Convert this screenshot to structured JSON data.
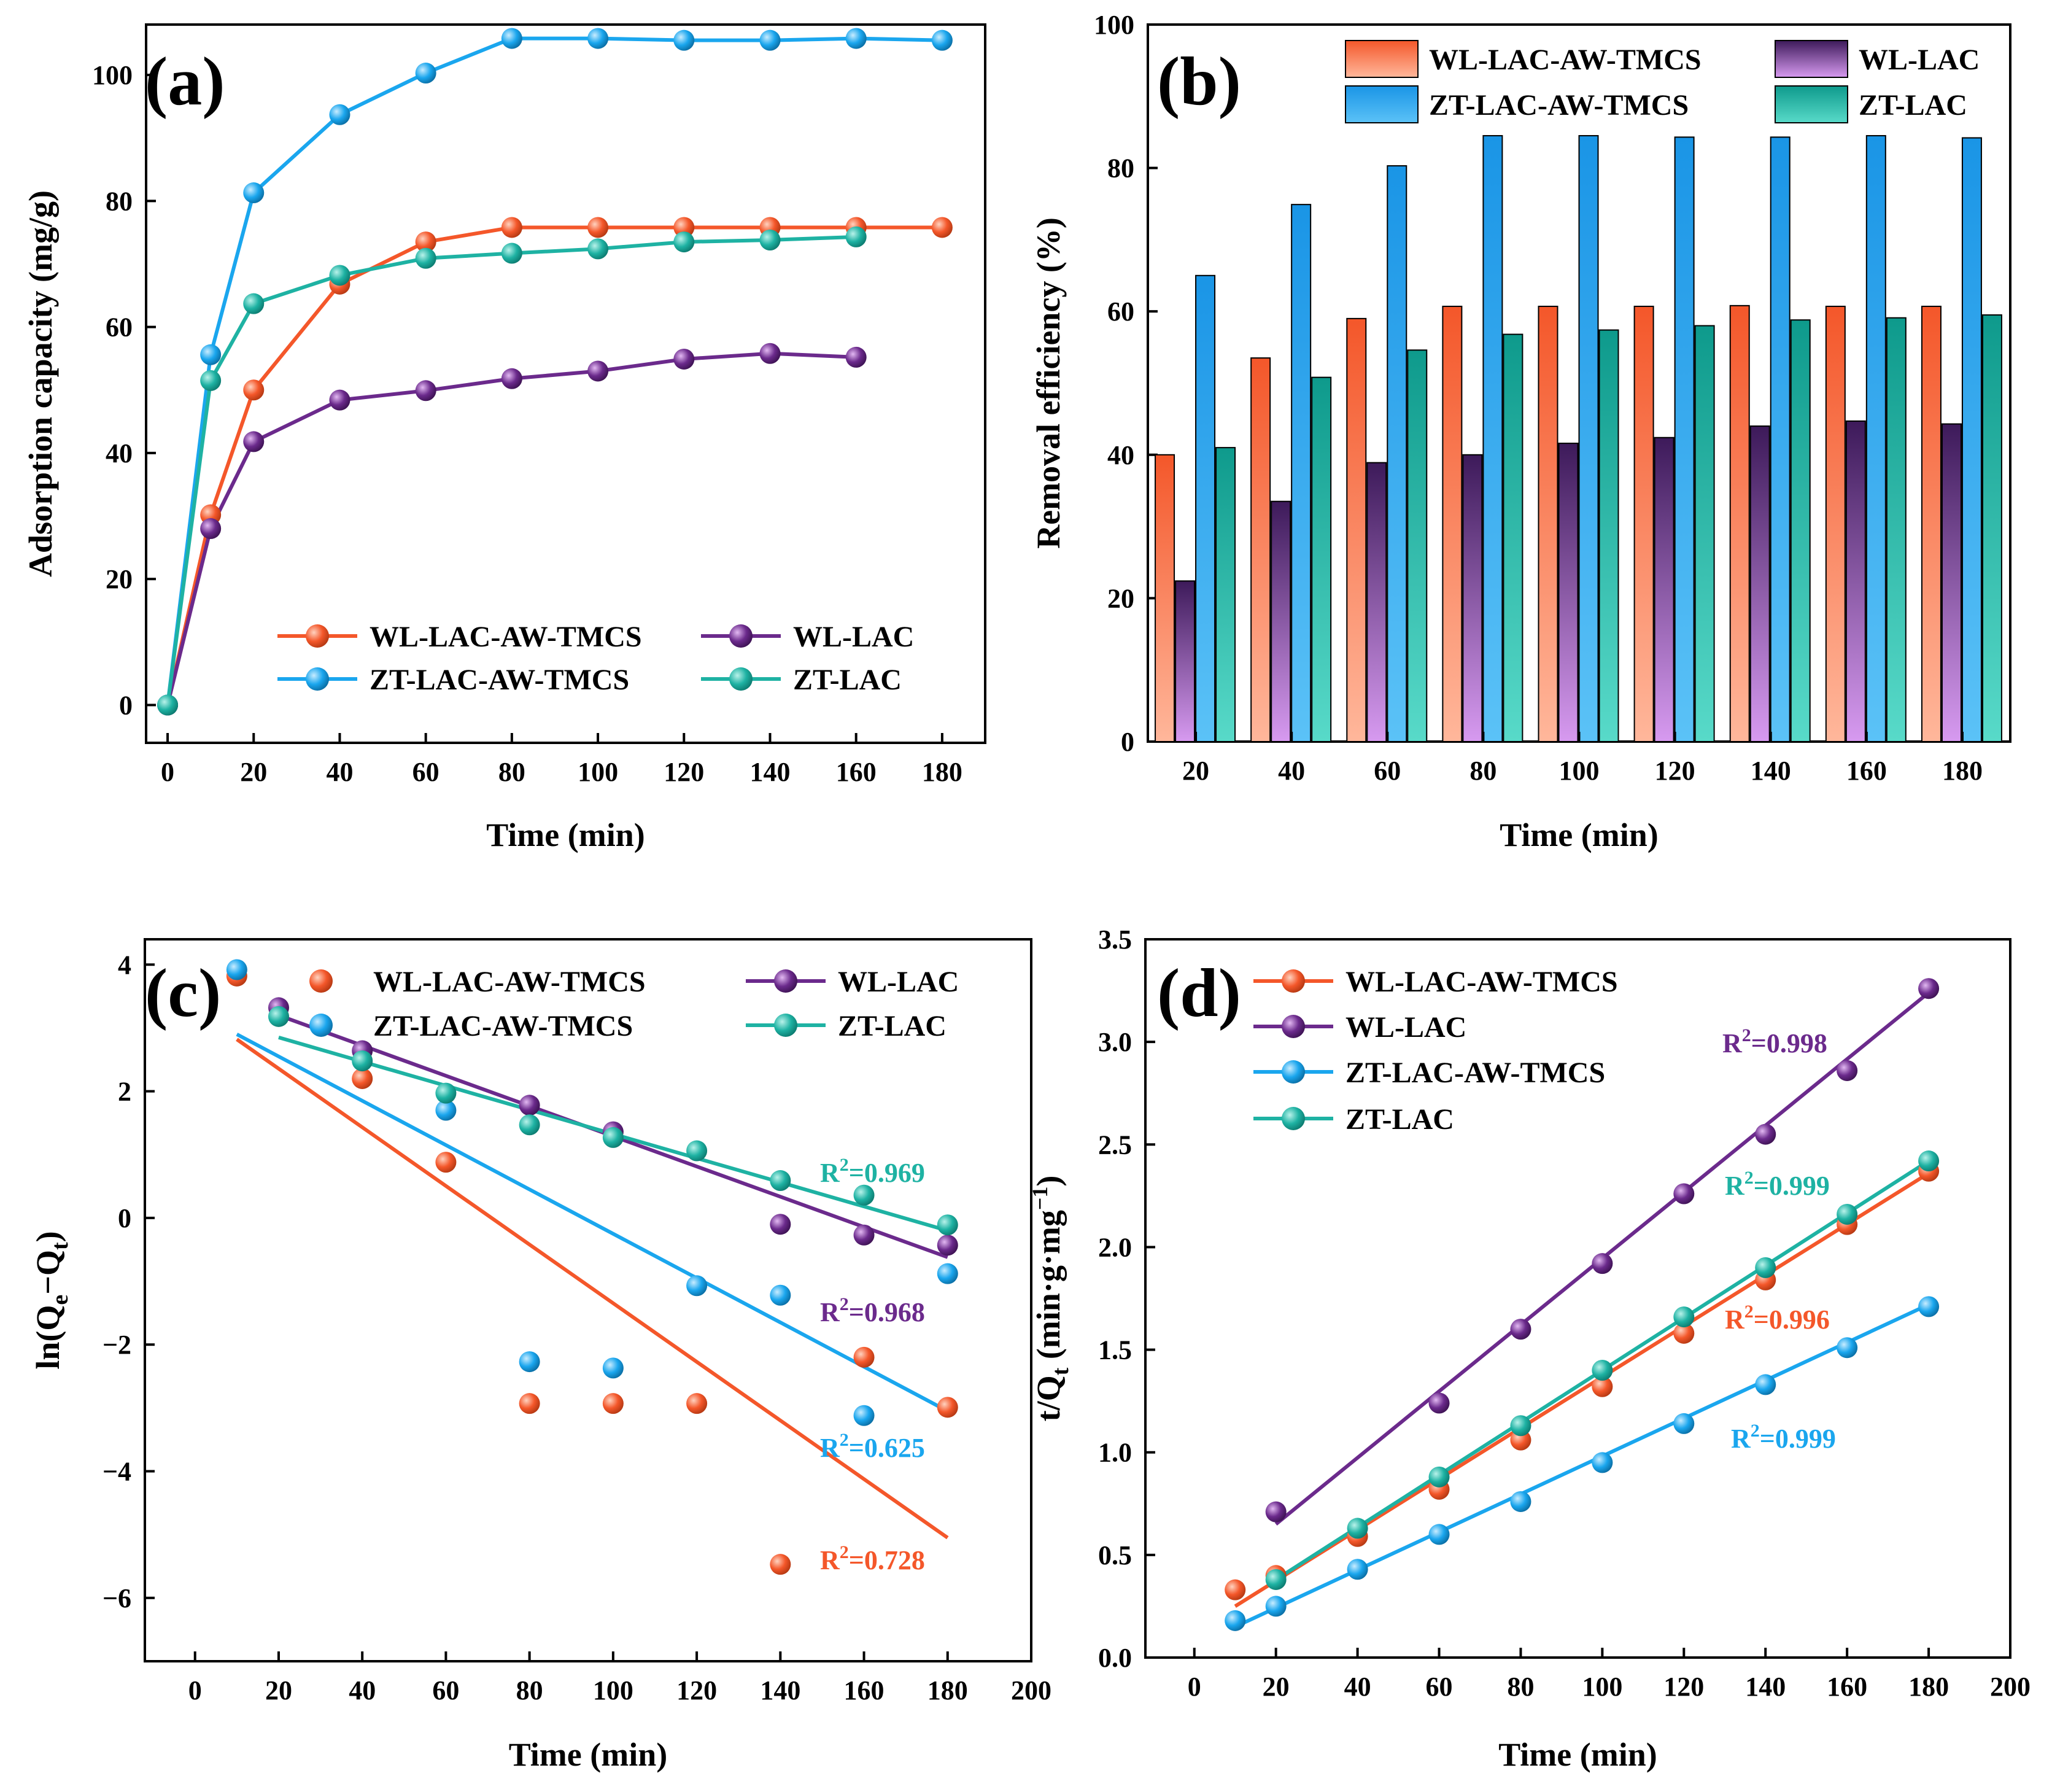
{
  "colors": {
    "WL-LAC-AW-TMCS": "#f4572a",
    "WL-LAC": "#6b2a8c",
    "ZT-LAC-AW-TMCS": "#1aa6ee",
    "ZT-LAC": "#1eb2a3"
  },
  "chart_data": [
    {
      "id": "a",
      "panel_label": "(a)",
      "type": "line",
      "xlabel": "Time (min)",
      "ylabel": "Adsorption capacity (mg/g)",
      "xlim": [
        -5,
        190
      ],
      "ylim": [
        -6,
        108
      ],
      "xticks": [
        0,
        20,
        40,
        60,
        80,
        100,
        120,
        140,
        160,
        180
      ],
      "yticks": [
        0,
        20,
        40,
        60,
        80,
        100
      ],
      "legend_position": "bottom-right",
      "series": [
        {
          "name": "WL-LAC-AW-TMCS",
          "x": [
            0,
            10,
            20,
            40,
            60,
            80,
            100,
            120,
            140,
            160,
            180
          ],
          "y": [
            0,
            30.2,
            50,
            66.8,
            73.5,
            75.8,
            75.8,
            75.8,
            75.8,
            75.8,
            75.8
          ]
        },
        {
          "name": "WL-LAC",
          "x": [
            0,
            10,
            20,
            40,
            60,
            80,
            100,
            120,
            140,
            160
          ],
          "y": [
            0,
            28,
            41.8,
            48.4,
            49.9,
            51.8,
            53,
            54.9,
            55.8,
            55.2
          ]
        },
        {
          "name": "ZT-LAC-AW-TMCS",
          "x": [
            0,
            10,
            20,
            40,
            60,
            80,
            100,
            120,
            140,
            160,
            180
          ],
          "y": [
            0,
            55.6,
            81.3,
            93.7,
            100.3,
            105.8,
            105.8,
            105.5,
            105.5,
            105.8,
            105.5
          ]
        },
        {
          "name": "ZT-LAC",
          "x": [
            0,
            10,
            20,
            40,
            60,
            80,
            100,
            120,
            140,
            160
          ],
          "y": [
            0,
            51.5,
            63.7,
            68.2,
            70.9,
            71.7,
            72.4,
            73.5,
            73.8,
            74.3
          ]
        }
      ]
    },
    {
      "id": "b",
      "panel_label": "(b)",
      "type": "bar",
      "xlabel": "Time (min)",
      "ylabel": "Removal efficiency (%)",
      "ylim": [
        0,
        100
      ],
      "yticks": [
        0,
        20,
        40,
        60,
        80,
        100
      ],
      "categories": [
        "20",
        "40",
        "60",
        "80",
        "100",
        "120",
        "140",
        "160",
        "180"
      ],
      "legend_position": "top",
      "series": [
        {
          "name": "WL-LAC-AW-TMCS",
          "values": [
            40,
            53.5,
            59,
            60.7,
            60.7,
            60.7,
            60.8,
            60.7,
            60.7
          ]
        },
        {
          "name": "WL-LAC",
          "values": [
            22.4,
            33.5,
            38.9,
            40,
            41.6,
            42.4,
            44,
            44.7,
            44.3
          ]
        },
        {
          "name": "ZT-LAC-AW-TMCS",
          "values": [
            65,
            74.9,
            80.3,
            84.5,
            84.5,
            84.3,
            84.3,
            84.5,
            84.2
          ]
        },
        {
          "name": "ZT-LAC",
          "values": [
            41,
            50.8,
            54.6,
            56.8,
            57.4,
            58,
            58.8,
            59.1,
            59.5
          ]
        }
      ]
    },
    {
      "id": "c",
      "panel_label": "(c)",
      "type": "scatter",
      "xlabel": "Time (min)",
      "ylabel": "ln(Qe−Qt)",
      "xlim": [
        -12,
        200
      ],
      "ylim": [
        -7,
        4.4
      ],
      "xticks": [
        0,
        20,
        40,
        60,
        80,
        100,
        120,
        140,
        160,
        180,
        200
      ],
      "yticks": [
        -6,
        -4,
        -2,
        0,
        2,
        4
      ],
      "legend_position": "top",
      "series": [
        {
          "name": "WL-LAC-AW-TMCS",
          "x": [
            10,
            40,
            60,
            80,
            100,
            120,
            140,
            160,
            180
          ],
          "y": [
            3.82,
            2.2,
            0.88,
            -2.93,
            -2.93,
            -2.93,
            -5.47,
            -2.2,
            -2.99
          ],
          "fit": [
            [
              10,
              2.82
            ],
            [
              180,
              -5.05
            ]
          ],
          "r2": "0.728"
        },
        {
          "name": "WL-LAC",
          "x": [
            20,
            40,
            80,
            100,
            140,
            160,
            180
          ],
          "y": [
            3.32,
            2.64,
            1.78,
            1.36,
            -0.1,
            -0.27,
            -0.43
          ],
          "fit": [
            [
              20,
              3.2
            ],
            [
              180,
              -0.62
            ]
          ],
          "r2": "0.968"
        },
        {
          "name": "ZT-LAC-AW-TMCS",
          "x": [
            10,
            60,
            80,
            100,
            120,
            140,
            160,
            180
          ],
          "y": [
            3.92,
            1.7,
            -2.27,
            -2.37,
            -1.07,
            -1.22,
            -3.12,
            -0.88
          ],
          "fit": [
            [
              10,
              2.9
            ],
            [
              180,
              -3.05
            ]
          ],
          "r2": "0.625"
        },
        {
          "name": "ZT-LAC",
          "x": [
            20,
            40,
            60,
            80,
            100,
            120,
            140,
            160,
            180
          ],
          "y": [
            3.18,
            2.48,
            1.97,
            1.47,
            1.27,
            1.06,
            0.59,
            0.36,
            -0.11
          ],
          "fit": [
            [
              20,
              2.85
            ],
            [
              180,
              -0.2
            ]
          ],
          "r2": "0.969"
        }
      ]
    },
    {
      "id": "d",
      "panel_label": "(d)",
      "type": "scatter",
      "xlabel": "Time (min)",
      "ylabel_main": "t/Q",
      "ylabel_sub": "t",
      "ylabel_units": " (min·g·mg",
      "ylabel_sup": "−1",
      "ylabel_close": ")",
      "xlim": [
        -12,
        200
      ],
      "ylim": [
        0,
        3.5
      ],
      "xticks": [
        0,
        20,
        40,
        60,
        80,
        100,
        120,
        140,
        160,
        180,
        200
      ],
      "yticks": [
        "0.0",
        "0.5",
        "1.0",
        "1.5",
        "2.0",
        "2.5",
        "3.0",
        "3.5"
      ],
      "legend_position": "top-left",
      "series": [
        {
          "name": "WL-LAC-AW-TMCS",
          "x": [
            10,
            20,
            40,
            60,
            80,
            100,
            120,
            140,
            160,
            180
          ],
          "y": [
            0.33,
            0.4,
            0.59,
            0.82,
            1.06,
            1.32,
            1.58,
            1.84,
            2.11,
            2.37
          ],
          "fit": [
            [
              10,
              0.25
            ],
            [
              180,
              2.36
            ]
          ],
          "r2": "0.996"
        },
        {
          "name": "WL-LAC",
          "x": [
            20,
            60,
            80,
            100,
            120,
            140,
            160,
            180
          ],
          "y": [
            0.71,
            1.24,
            1.6,
            1.92,
            2.26,
            2.55,
            2.86,
            3.26
          ],
          "fit": [
            [
              20,
              0.65
            ],
            [
              180,
              3.24
            ]
          ],
          "r2": "0.998"
        },
        {
          "name": "ZT-LAC-AW-TMCS",
          "x": [
            10,
            20,
            40,
            60,
            80,
            100,
            120,
            140,
            160,
            180
          ],
          "y": [
            0.18,
            0.25,
            0.43,
            0.6,
            0.76,
            0.95,
            1.14,
            1.33,
            1.51,
            1.71
          ],
          "fit": [
            [
              10,
              0.15
            ],
            [
              180,
              1.72
            ]
          ],
          "r2": "0.999"
        },
        {
          "name": "ZT-LAC",
          "x": [
            20,
            40,
            60,
            80,
            100,
            120,
            140,
            160,
            180
          ],
          "y": [
            0.38,
            0.63,
            0.88,
            1.13,
            1.4,
            1.66,
            1.9,
            2.16,
            2.42
          ],
          "fit": [
            [
              20,
              0.38
            ],
            [
              180,
              2.42
            ]
          ],
          "r2": "0.999"
        }
      ]
    }
  ]
}
